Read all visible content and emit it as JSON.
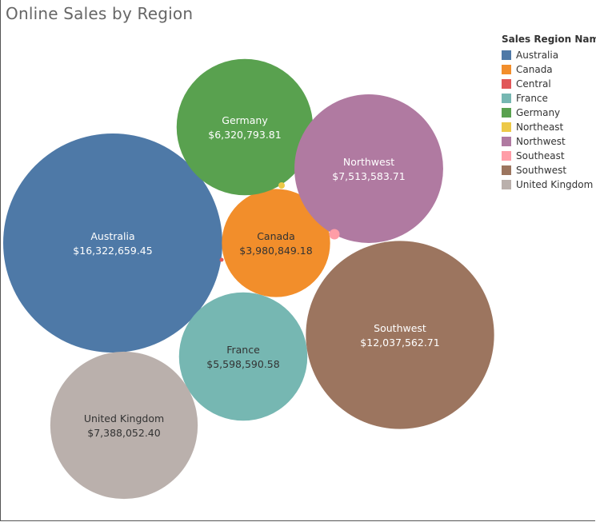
{
  "chart_data": {
    "type": "bubble",
    "title": "Online Sales by Region",
    "legend": {
      "title": "Sales Region Name",
      "placement": "right"
    },
    "series": [
      {
        "name": "Australia",
        "value_label": "$16,322,659.45",
        "value": 16322659.45,
        "color": "#4e79a7",
        "label_color": "#ffffff"
      },
      {
        "name": "Canada",
        "value_label": "$3,980,849.18",
        "value": 3980849.18,
        "color": "#f28e2b",
        "label_color": "#333333"
      },
      {
        "name": "Central",
        "value_label": "",
        "value": 0,
        "color": "#e15759",
        "label_color": "#ffffff"
      },
      {
        "name": "France",
        "value_label": "$5,598,590.58",
        "value": 5598590.58,
        "color": "#76b7b2",
        "label_color": "#333333"
      },
      {
        "name": "Germany",
        "value_label": "$6,320,793.81",
        "value": 6320793.81,
        "color": "#59a14f",
        "label_color": "#ffffff"
      },
      {
        "name": "Northeast",
        "value_label": "",
        "value": 0,
        "color": "#edc948",
        "label_color": "#333333"
      },
      {
        "name": "Northwest",
        "value_label": "$7,513,583.71",
        "value": 7513583.71,
        "color": "#b07aa1",
        "label_color": "#ffffff"
      },
      {
        "name": "Southeast",
        "value_label": "",
        "value": 0,
        "color": "#ff9da7",
        "label_color": "#333333"
      },
      {
        "name": "Southwest",
        "value_label": "$12,037,562.71",
        "value": 12037562.71,
        "color": "#9c755f",
        "label_color": "#ffffff"
      },
      {
        "name": "United Kingdom",
        "value_label": "$7,388,052.40",
        "value": 7388052.4,
        "color": "#bab0ac",
        "label_color": "#333333"
      }
    ]
  }
}
